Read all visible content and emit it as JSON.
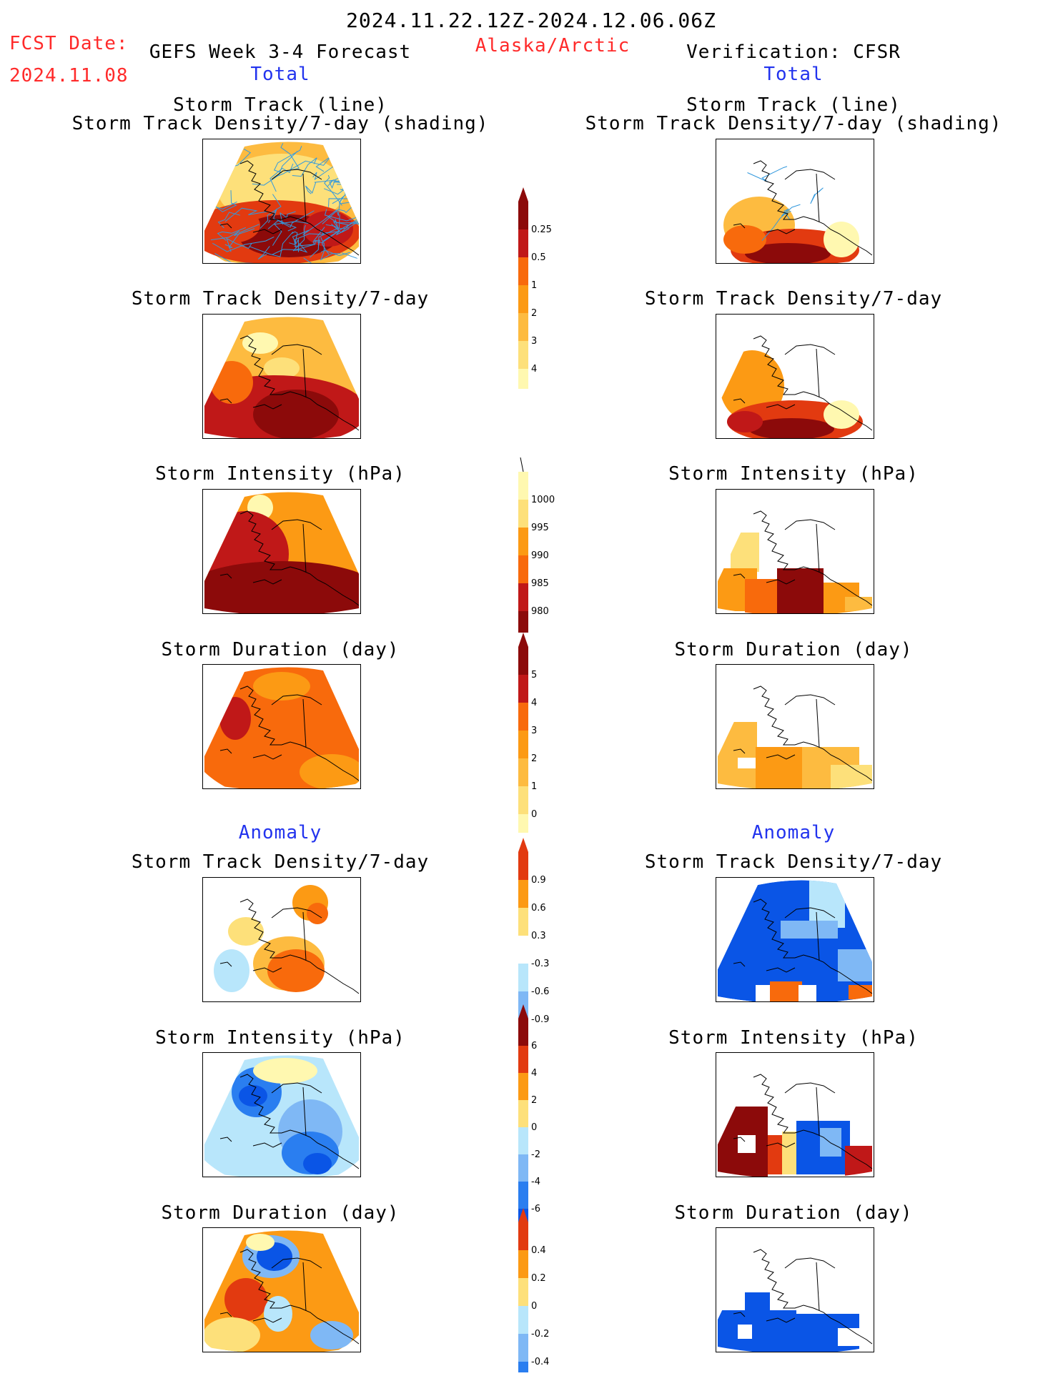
{
  "header": {
    "period": "2024.11.22.12Z-2024.12.06.06Z",
    "fcst_label": "FCST Date:",
    "fcst_date": "2024.11.08",
    "forecast_title": "GEFS Week 3-4 Forecast",
    "region": "Alaska/Arctic",
    "verification_title": "Verification: CFSR",
    "total_left": "Total",
    "total_right": "Total",
    "anomaly_left": "Anomaly",
    "anomaly_right": "Anomaly"
  },
  "panel_titles": {
    "track_line": "Storm Track (line)",
    "track_density_shading": "Storm Track Density/7-day (shading)",
    "track_density": "Storm Track Density/7-day",
    "intensity": "Storm Intensity (hPa)",
    "duration": "Storm Duration (day)"
  },
  "colors": {
    "warm": [
      "#fff8b0",
      "#fde07a",
      "#fdbb40",
      "#fc9a14",
      "#f86a0c",
      "#e23a10",
      "#c01818",
      "#8c0a0a"
    ],
    "cool": [
      "#0a55e6",
      "#2a7ef0",
      "#7fb8f5",
      "#b8e6fb"
    ],
    "track_lines": "#3399dd",
    "map_outline": "#000000"
  },
  "chart_data": [
    {
      "type": "heatmap",
      "name": "density_total",
      "ticks": [
        "0.25",
        "0.5",
        "1",
        "2",
        "3",
        "4"
      ]
    },
    {
      "type": "heatmap",
      "name": "intensity_total",
      "ticks": [
        "1000",
        "995",
        "990",
        "985",
        "980"
      ]
    },
    {
      "type": "heatmap",
      "name": "duration_total",
      "ticks": [
        "5",
        "4",
        "3",
        "2",
        "1",
        "0"
      ]
    },
    {
      "type": "heatmap",
      "name": "density_anomaly",
      "ticks": [
        "0.9",
        "0.6",
        "0.3",
        "-0.3",
        "-0.6",
        "-0.9"
      ]
    },
    {
      "type": "heatmap",
      "name": "intensity_anomaly",
      "ticks": [
        "6",
        "4",
        "2",
        "0",
        "-2",
        "-4",
        "-6"
      ]
    },
    {
      "type": "heatmap",
      "name": "duration_anomaly",
      "ticks": [
        "0.4",
        "0.2",
        "0",
        "-0.2",
        "-0.4"
      ]
    }
  ]
}
